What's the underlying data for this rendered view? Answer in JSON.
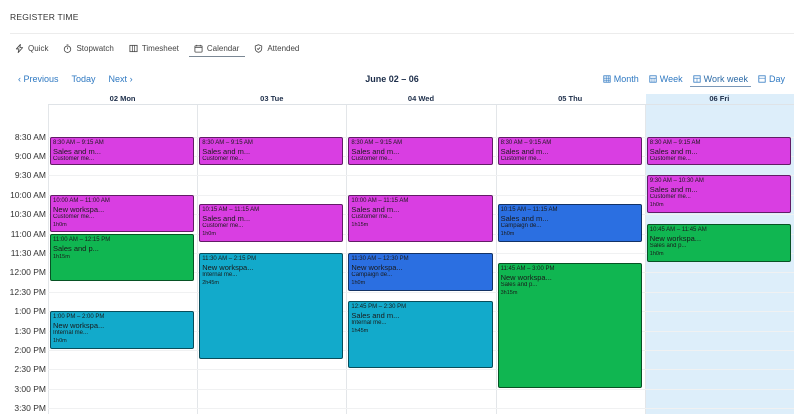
{
  "header": {
    "title": "REGISTER TIME"
  },
  "mode_tabs": [
    {
      "label": "Quick",
      "icon": "lightning-icon"
    },
    {
      "label": "Stopwatch",
      "icon": "stopwatch-icon"
    },
    {
      "label": "Timesheet",
      "icon": "timesheet-icon"
    },
    {
      "label": "Calendar",
      "icon": "calendar-icon",
      "active": true
    },
    {
      "label": "Attended",
      "icon": "shield-check-icon"
    }
  ],
  "nav": {
    "previous": "Previous",
    "today": "Today",
    "next": "Next",
    "range": "June 02 – 06"
  },
  "views": [
    {
      "label": "Month",
      "icon": "calendar-month-icon"
    },
    {
      "label": "Week",
      "icon": "calendar-week-icon"
    },
    {
      "label": "Work week",
      "icon": "calendar-workweek-icon",
      "active": true
    },
    {
      "label": "Day",
      "icon": "calendar-day-icon"
    }
  ],
  "days": [
    {
      "label": "02 Mon"
    },
    {
      "label": "03 Tue"
    },
    {
      "label": "04 Wed"
    },
    {
      "label": "05 Thu"
    },
    {
      "label": "06 Fri",
      "today": true
    }
  ],
  "time_slots": [
    "8:30 AM",
    "9:00 AM",
    "9:30 AM",
    "10:00 AM",
    "10:30 AM",
    "11:00 AM",
    "11:30 AM",
    "12:00 PM",
    "12:30 PM",
    "1:00 PM",
    "1:30 PM",
    "2:00 PM",
    "2:30 PM",
    "3:00 PM",
    "3:30 PM"
  ],
  "colors": {
    "magenta": "#d93ee2",
    "green": "#10b651",
    "cyan": "#12aacb",
    "blue": "#2b6fe1",
    "today": "#ddeefa"
  },
  "events": [
    {
      "day": 0,
      "start": "8:30",
      "end": "9:15",
      "time": "8:30 AM – 9:15 AM",
      "title": "Sales and m...",
      "sub": "Customer me...",
      "duration": "",
      "color": "#d93ee2"
    },
    {
      "day": 0,
      "start": "10:00",
      "end": "11:00",
      "time": "10:00 AM – 11:00 AM",
      "title": "New workspa...",
      "sub": "Customer me...",
      "duration": "1h0m",
      "color": "#d93ee2"
    },
    {
      "day": 0,
      "start": "11:00",
      "end": "12:15",
      "time": "11:00 AM – 12:15 PM",
      "title": "Sales and p...",
      "sub": "",
      "duration": "1h15m",
      "color": "#10b651"
    },
    {
      "day": 0,
      "start": "13:00",
      "end": "14:00",
      "time": "1:00 PM – 2:00 PM",
      "title": "New workspa...",
      "sub": "Internal me...",
      "duration": "1h0m",
      "color": "#12aacb"
    },
    {
      "day": 1,
      "start": "8:30",
      "end": "9:15",
      "time": "8:30 AM – 9:15 AM",
      "title": "Sales and m...",
      "sub": "Customer me...",
      "duration": "",
      "color": "#d93ee2"
    },
    {
      "day": 1,
      "start": "10:15",
      "end": "11:15",
      "time": "10:15 AM – 11:15 AM",
      "title": "Sales and m...",
      "sub": "Customer me...",
      "duration": "1h0m",
      "color": "#d93ee2"
    },
    {
      "day": 1,
      "start": "11:30",
      "end": "14:15",
      "time": "11:30 AM – 2:15 PM",
      "title": "New workspa...",
      "sub": "Internal me...",
      "duration": "2h45m",
      "color": "#12aacb"
    },
    {
      "day": 2,
      "start": "8:30",
      "end": "9:15",
      "time": "8:30 AM – 9:15 AM",
      "title": "Sales and m...",
      "sub": "Customer me...",
      "duration": "",
      "color": "#d93ee2"
    },
    {
      "day": 2,
      "start": "10:00",
      "end": "11:15",
      "time": "10:00 AM – 11:15 AM",
      "title": "Sales and m...",
      "sub": "Customer me...",
      "duration": "1h15m",
      "color": "#d93ee2"
    },
    {
      "day": 2,
      "start": "11:30",
      "end": "12:30",
      "time": "11:30 AM – 12:30 PM",
      "title": "New workspa...",
      "sub": "Campaign de...",
      "duration": "1h0m",
      "color": "#2b6fe1"
    },
    {
      "day": 2,
      "start": "12:45",
      "end": "14:30",
      "time": "12:45 PM – 2:30 PM",
      "title": "Sales and m...",
      "sub": "Internal me...",
      "duration": "1h45m",
      "color": "#12aacb"
    },
    {
      "day": 3,
      "start": "8:30",
      "end": "9:15",
      "time": "8:30 AM – 9:15 AM",
      "title": "Sales and m...",
      "sub": "Customer me...",
      "duration": "",
      "color": "#d93ee2"
    },
    {
      "day": 3,
      "start": "10:15",
      "end": "11:15",
      "time": "10:15 AM – 11:15 AM",
      "title": "Sales and m...",
      "sub": "Campaign de...",
      "duration": "1h0m",
      "color": "#2b6fe1"
    },
    {
      "day": 3,
      "start": "11:45",
      "end": "15:00",
      "time": "11:45 AM – 3:00 PM",
      "title": "New workspa...",
      "sub": "Sales and p...",
      "duration": "3h15m",
      "color": "#10b651"
    },
    {
      "day": 4,
      "start": "8:30",
      "end": "9:15",
      "time": "8:30 AM – 9:15 AM",
      "title": "Sales and m...",
      "sub": "Customer me...",
      "duration": "",
      "color": "#d93ee2"
    },
    {
      "day": 4,
      "start": "9:30",
      "end": "10:30",
      "time": "9:30 AM – 10:30 AM",
      "title": "Sales and m...",
      "sub": "Customer me...",
      "duration": "1h0m",
      "color": "#d93ee2"
    },
    {
      "day": 4,
      "start": "10:45",
      "end": "11:45",
      "time": "10:45 AM – 11:45 AM",
      "title": "New workspa...",
      "sub": "Sales and p...",
      "duration": "1h0m",
      "color": "#10b651"
    }
  ]
}
